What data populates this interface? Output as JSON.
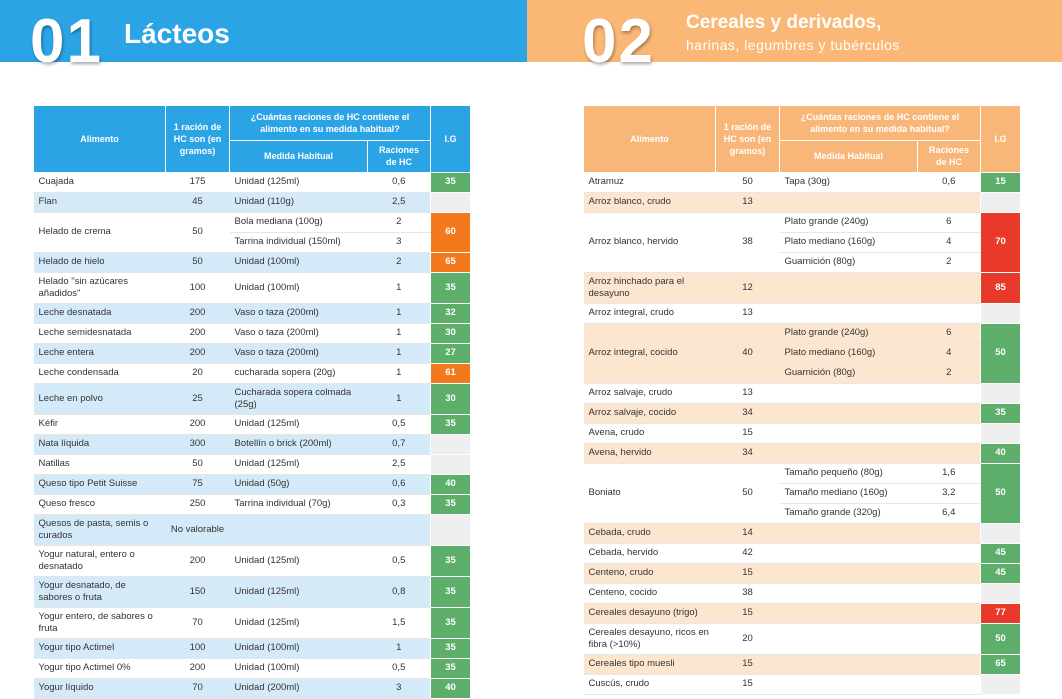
{
  "left": {
    "number": "01",
    "title": "Lácteos",
    "table": {
      "headers": {
        "food": "Alimento",
        "grams": "1 ración de HC son (en gramos)",
        "question": "¿Cuántas raciones de HC contiene el alimento en su medida habitual?",
        "measure": "Medida Habitual",
        "rations": "Raciones de HC",
        "ig": "I.G"
      },
      "rows": [
        {
          "food": "Cuajada",
          "grams": "175",
          "measures": [
            {
              "measure": "Unidad (125ml)",
              "rations": "0,6"
            }
          ],
          "ig": "35",
          "ig_color": "#5dad6b"
        },
        {
          "food": "Flan",
          "grams": "45",
          "measures": [
            {
              "measure": "Unidad (110g)",
              "rations": "2,5"
            }
          ],
          "ig": null
        },
        {
          "food": "Helado de crema",
          "grams": "50",
          "measures": [
            {
              "measure": "Bola mediana (100g)",
              "rations": "2"
            },
            {
              "measure": "Tarrina individual (150ml)",
              "rations": "3"
            }
          ],
          "ig": "60",
          "ig_color": "#f27a1c"
        },
        {
          "food": "Helado de hielo",
          "grams": "50",
          "measures": [
            {
              "measure": "Unidad (100ml)",
              "rations": "2"
            }
          ],
          "ig": "65",
          "ig_color": "#f27a1c"
        },
        {
          "food": "Helado \"sin azúcares añadidos\"",
          "grams": "100",
          "measures": [
            {
              "measure": "Unidad (100ml)",
              "rations": "1"
            }
          ],
          "ig": "35",
          "ig_color": "#5dad6b"
        },
        {
          "food": "Leche desnatada",
          "grams": "200",
          "measures": [
            {
              "measure": "Vaso o taza (200ml)",
              "rations": "1"
            }
          ],
          "ig": "32",
          "ig_color": "#5dad6b"
        },
        {
          "food": "Leche semidesnatada",
          "grams": "200",
          "measures": [
            {
              "measure": "Vaso o taza (200ml)",
              "rations": "1"
            }
          ],
          "ig": "30",
          "ig_color": "#5dad6b"
        },
        {
          "food": "Leche entera",
          "grams": "200",
          "measures": [
            {
              "measure": "Vaso o taza (200ml)",
              "rations": "1"
            }
          ],
          "ig": "27",
          "ig_color": "#5dad6b"
        },
        {
          "food": "Leche condensada",
          "grams": "20",
          "measures": [
            {
              "measure": "cucharada sopera (20g)",
              "rations": "1"
            }
          ],
          "ig": "61",
          "ig_color": "#f27a1c"
        },
        {
          "food": "Leche en polvo",
          "grams": "25",
          "measures": [
            {
              "measure": "Cucharada sopera colmada (25g)",
              "rations": "1"
            }
          ],
          "ig": "30",
          "ig_color": "#5dad6b"
        },
        {
          "food": "Kéfir",
          "grams": "200",
          "measures": [
            {
              "measure": "Unidad (125ml)",
              "rations": "0,5"
            }
          ],
          "ig": "35",
          "ig_color": "#5dad6b"
        },
        {
          "food": "Nata líquida",
          "grams": "300",
          "measures": [
            {
              "measure": "Botellín o brick (200ml)",
              "rations": "0,7"
            }
          ],
          "ig": null
        },
        {
          "food": "Natillas",
          "grams": "50",
          "measures": [
            {
              "measure": "Unidad (125ml)",
              "rations": "2,5"
            }
          ],
          "ig": null
        },
        {
          "food": "Queso tipo Petit Suisse",
          "grams": "75",
          "measures": [
            {
              "measure": "Unidad (50g)",
              "rations": "0,6"
            }
          ],
          "ig": "40",
          "ig_color": "#5dad6b"
        },
        {
          "food": "Queso fresco",
          "grams": "250",
          "measures": [
            {
              "measure": "Tarrina individual (70g)",
              "rations": "0,3"
            }
          ],
          "ig": "35",
          "ig_color": "#5dad6b"
        },
        {
          "food": "Quesos de pasta, semis o curados",
          "grams": "No valorable",
          "measures": [],
          "ig": null
        },
        {
          "food": "Yogur natural, entero o desnatado",
          "grams": "200",
          "measures": [
            {
              "measure": "Unidad (125ml)",
              "rations": "0,5"
            }
          ],
          "ig": "35",
          "ig_color": "#5dad6b"
        },
        {
          "food": "Yogur desnatado, de sabores o fruta",
          "grams": "150",
          "measures": [
            {
              "measure": "Unidad (125ml)",
              "rations": "0,8"
            }
          ],
          "ig": "35",
          "ig_color": "#5dad6b"
        },
        {
          "food": "Yogur entero, de sabores o fruta",
          "grams": "70",
          "measures": [
            {
              "measure": "Unidad (125ml)",
              "rations": "1,5"
            }
          ],
          "ig": "35",
          "ig_color": "#5dad6b"
        },
        {
          "food": "Yogur tipo Actimel",
          "grams": "100",
          "measures": [
            {
              "measure": "Unidad (100ml)",
              "rations": "1"
            }
          ],
          "ig": "35",
          "ig_color": "#5dad6b"
        },
        {
          "food": "Yogur tipo Actimel 0%",
          "grams": "200",
          "measures": [
            {
              "measure": "Unidad (100ml)",
              "rations": "0,5"
            }
          ],
          "ig": "35",
          "ig_color": "#5dad6b"
        },
        {
          "food": "Yogur líquido",
          "grams": "70",
          "measures": [
            {
              "measure": "Unidad (200ml)",
              "rations": "3"
            }
          ],
          "ig": "40",
          "ig_color": "#5dad6b"
        }
      ]
    }
  },
  "right": {
    "number": "02",
    "title": "Cereales y derivados,",
    "subtitle": "harinas, legumbres y tubérculos",
    "table": {
      "headers": {
        "food": "Alimento",
        "grams": "1 ración de HC son (en gramos)",
        "question": "¿Cuántas raciones de HC contiene el alimento en su medida habitual?",
        "measure": "Medida Habitual",
        "rations": "Raciones de HC",
        "ig": "I.G"
      },
      "rows": [
        {
          "food": "Atramuz",
          "grams": "50",
          "measures": [
            {
              "measure": "Tapa (30g)",
              "rations": "0,6"
            }
          ],
          "ig": "15",
          "ig_color": "#5dad6b"
        },
        {
          "food": "Arroz blanco, crudo",
          "grams": "13",
          "measures": [],
          "ig": null
        },
        {
          "food": "Arroz blanco, hervido",
          "grams": "38",
          "measures": [
            {
              "measure": "Plato grande (240g)",
              "rations": "6"
            },
            {
              "measure": "Plato mediano (160g)",
              "rations": "4"
            },
            {
              "measure": "Guarnición (80g)",
              "rations": "2"
            }
          ],
          "ig": "70",
          "ig_color": "#e8392a"
        },
        {
          "food": "Arroz hinchado para el desayuno",
          "grams": "12",
          "measures": [],
          "ig": "85",
          "ig_color": "#e8392a"
        },
        {
          "food": "Arroz integral, crudo",
          "grams": "13",
          "measures": [],
          "ig": null
        },
        {
          "food": "Arroz integral, cocido",
          "grams": "40",
          "measures": [
            {
              "measure": "Plato grande (240g)",
              "rations": "6"
            },
            {
              "measure": "Plato mediano (160g)",
              "rations": "4"
            },
            {
              "measure": "Guarnición (80g)",
              "rations": "2"
            }
          ],
          "ig": "50",
          "ig_color": "#5dad6b"
        },
        {
          "food": "Arroz salvaje, crudo",
          "grams": "13",
          "measures": [],
          "ig": null
        },
        {
          "food": "Arroz salvaje, cocido",
          "grams": "34",
          "measures": [],
          "ig": "35",
          "ig_color": "#5dad6b"
        },
        {
          "food": "Avena, crudo",
          "grams": "15",
          "measures": [],
          "ig": null
        },
        {
          "food": "Avena, hervido",
          "grams": "34",
          "measures": [],
          "ig": "40",
          "ig_color": "#5dad6b"
        },
        {
          "food": "Boniato",
          "grams": "50",
          "measures": [
            {
              "measure": "Tamaño pequeño (80g)",
              "rations": "1,6"
            },
            {
              "measure": "Tamaño mediano (160g)",
              "rations": "3,2"
            },
            {
              "measure": "Tamaño grande (320g)",
              "rations": "6,4"
            }
          ],
          "ig": "50",
          "ig_color": "#5dad6b"
        },
        {
          "food": "Cebada, crudo",
          "grams": "14",
          "measures": [],
          "ig": null
        },
        {
          "food": "Cebada, hervido",
          "grams": "42",
          "measures": [],
          "ig": "45",
          "ig_color": "#5dad6b"
        },
        {
          "food": "Centeno, crudo",
          "grams": "15",
          "measures": [],
          "ig": "45",
          "ig_color": "#5dad6b"
        },
        {
          "food": "Centeno, cocido",
          "grams": "38",
          "measures": [],
          "ig": null
        },
        {
          "food": "Cereales desayuno (trigo)",
          "grams": "15",
          "measures": [],
          "ig": "77",
          "ig_color": "#e8392a"
        },
        {
          "food": "Cereales desayuno, ricos en fibra (>10%)",
          "grams": "20",
          "measures": [],
          "ig": "50",
          "ig_color": "#5dad6b"
        },
        {
          "food": "Cereales tipo muesli",
          "grams": "15",
          "measures": [],
          "ig": "65",
          "ig_color": "#5dad6b"
        },
        {
          "food": "Cuscús, crudo",
          "grams": "15",
          "measures": [],
          "ig": null
        }
      ]
    }
  }
}
